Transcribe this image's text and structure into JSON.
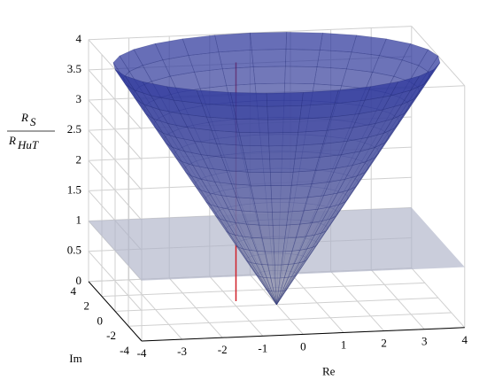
{
  "chart_data": {
    "type": "cone3d",
    "xlabel": "Re",
    "ylabel": "Im",
    "zlabel": {
      "numerator": "R",
      "numerator_sub": "S",
      "denominator": "R",
      "denominator_sub": "HuT"
    },
    "xlim": [
      -4,
      4
    ],
    "xticks": [
      -4,
      -3,
      -2,
      -1,
      0,
      1,
      2,
      3,
      4
    ],
    "ylim": [
      -4,
      4
    ],
    "yticks": [
      -4,
      -2,
      0,
      2,
      4
    ],
    "zlim": [
      0,
      4
    ],
    "zticks": [
      0,
      0.5,
      1,
      1.5,
      2,
      2.5,
      3,
      3.5,
      4
    ],
    "cone": {
      "slope": 1,
      "zmax": 4,
      "color_top": "#28329a",
      "color_bottom": "#a0a2b4"
    },
    "plane_z": 1,
    "plane_color": "#aeb2c8",
    "red_line": {
      "re": -0.9,
      "im": 0.65,
      "z": [
        0,
        3.95
      ],
      "color": "#d0202a"
    },
    "grid": true
  }
}
